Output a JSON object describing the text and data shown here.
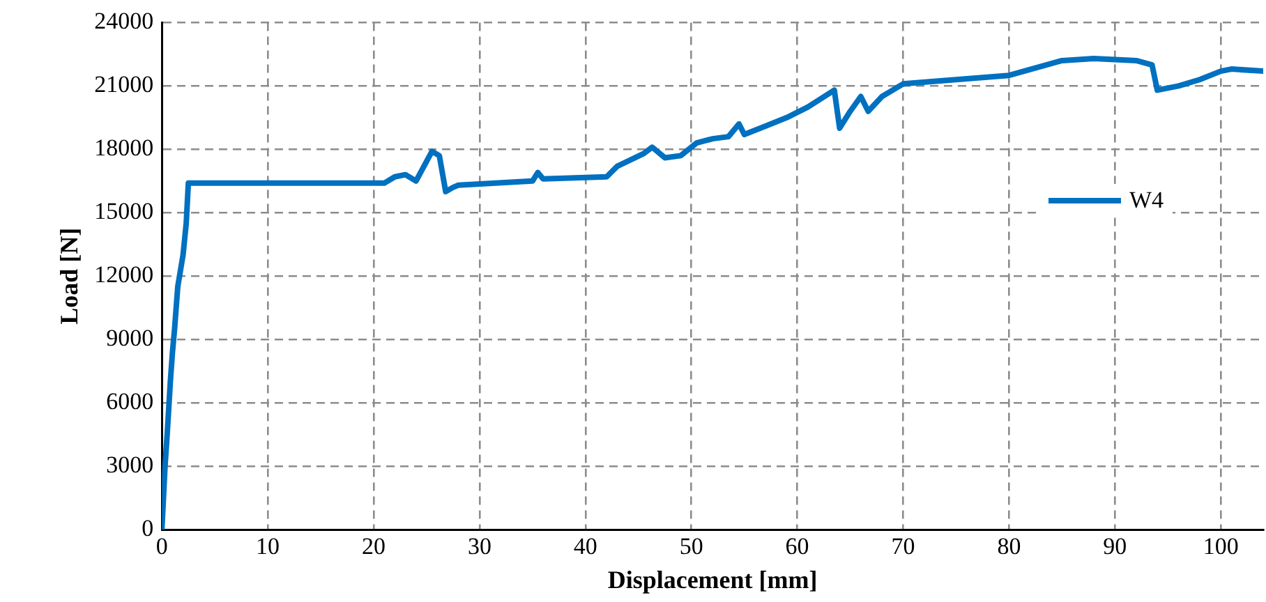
{
  "chart_data": {
    "type": "line",
    "xlabel": "Displacement [mm]",
    "ylabel": "Load [N]",
    "xlim": [
      0,
      104
    ],
    "ylim": [
      0,
      24000
    ],
    "xticks": [
      0,
      10,
      20,
      30,
      40,
      50,
      60,
      70,
      80,
      90,
      100
    ],
    "yticks": [
      0,
      3000,
      6000,
      9000,
      12000,
      15000,
      18000,
      21000,
      24000
    ],
    "grid": true,
    "legend": "right",
    "marker": "none",
    "line_style": "solid",
    "x": [
      0,
      0.3,
      0.5,
      0.8,
      1,
      1.2,
      1.5,
      2,
      2.3,
      2.5,
      21,
      22,
      23,
      24,
      25.5,
      26.2,
      26.8,
      27.5,
      28,
      35,
      35.5,
      36,
      42,
      43,
      45.5,
      46.3,
      47.5,
      49,
      50.5,
      52,
      53.5,
      54.5,
      55,
      57,
      59,
      61,
      63.5,
      64,
      65,
      66,
      66.7,
      68,
      70,
      75,
      80,
      85,
      88,
      92,
      93.5,
      94,
      96,
      98,
      100,
      101,
      104
    ],
    "series": [
      {
        "name": "W4",
        "color": "#0070c0",
        "values": [
          0,
          3000,
          4500,
          7000,
          8400,
          9500,
          11500,
          13000,
          14500,
          16400,
          16400,
          16700,
          16800,
          16500,
          17900,
          17700,
          16000,
          16200,
          16300,
          16500,
          16900,
          16600,
          16700,
          17200,
          17800,
          18100,
          17600,
          17700,
          18300,
          18500,
          18600,
          19200,
          18700,
          19100,
          19500,
          20000,
          20800,
          19000,
          19800,
          20500,
          19800,
          20500,
          21100,
          21300,
          21500,
          22200,
          22300,
          22200,
          22000,
          20800,
          21000,
          21300,
          21700,
          21800,
          21700
        ]
      }
    ]
  }
}
